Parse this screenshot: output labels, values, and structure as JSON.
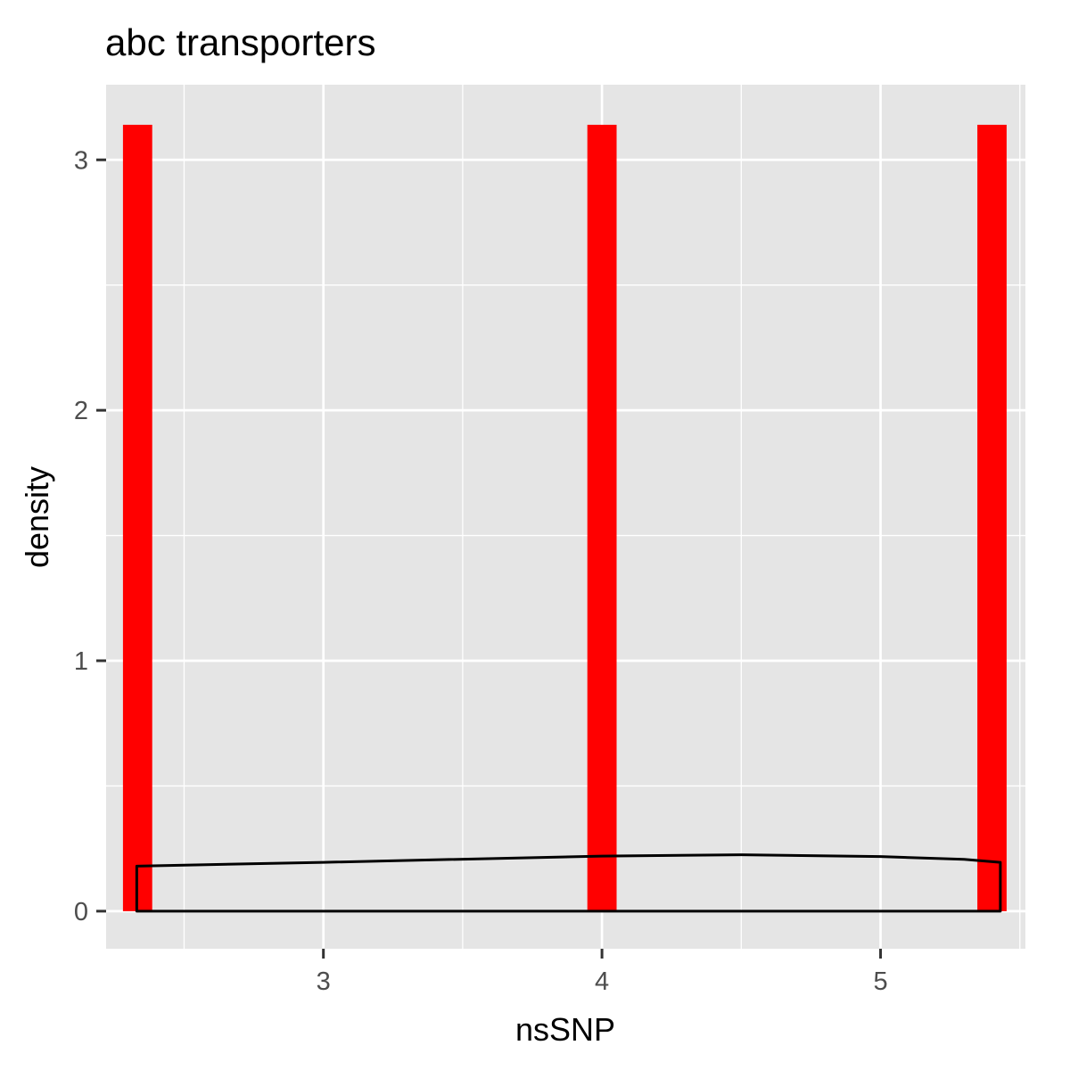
{
  "chart_data": {
    "type": "bar",
    "title": "abc transporters",
    "xlabel": "nsSNP",
    "ylabel": "density",
    "xlim": [
      2.22,
      5.52
    ],
    "ylim": [
      -0.15,
      3.3
    ],
    "x_ticks": [
      3,
      4,
      5
    ],
    "y_ticks": [
      0,
      1,
      2,
      3
    ],
    "x_minor_gridlines": [
      2.5,
      3.5,
      4.5,
      5.5
    ],
    "y_minor_gridlines": [
      0.5,
      1.5,
      2.5
    ],
    "grid": true,
    "panel_background": "#e5e5e5",
    "grid_color": "#ffffff",
    "series": [
      {
        "type": "histogram",
        "color": "#ff0000",
        "bin_width": 0.105,
        "bars": [
          {
            "x": 2.333,
            "density": 3.14
          },
          {
            "x": 4.0,
            "density": 3.14
          },
          {
            "x": 5.4,
            "density": 3.14
          }
        ]
      },
      {
        "type": "density",
        "color": "#000000",
        "fill": "none",
        "x": [
          2.33,
          3.0,
          4.0,
          4.5,
          5.0,
          5.3,
          5.43
        ],
        "y": [
          0.18,
          0.195,
          0.22,
          0.225,
          0.218,
          0.207,
          0.195
        ]
      }
    ]
  }
}
